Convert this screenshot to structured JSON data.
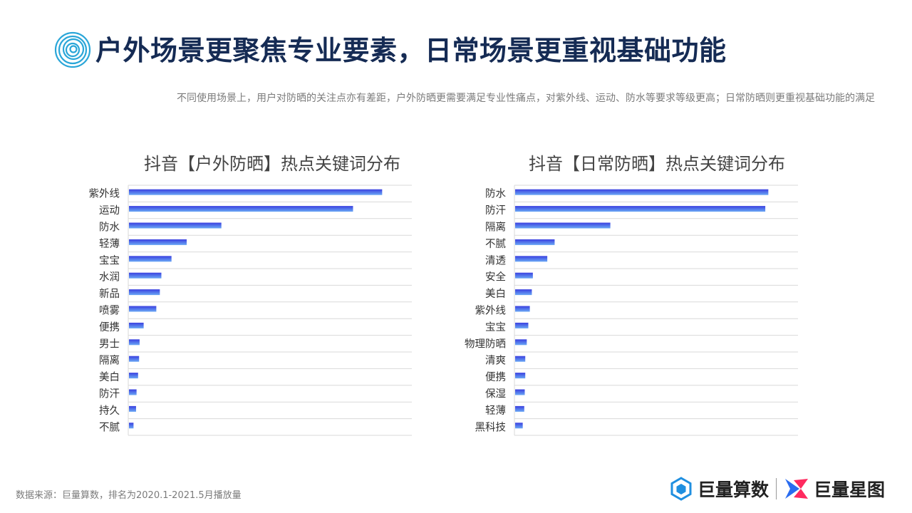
{
  "header": {
    "title": "户外场景更聚焦专业要素，日常场景更重视基础功能",
    "subtitle": "不同使用场景上，用户对防晒的关注点亦有差距，户外防晒更需要满足专业性痛点，对紫外线、运动、防水等要求等级更高；日常防晒则更重视基础功能的满足"
  },
  "colors": {
    "title": "#152b54",
    "bar_start": "#3a3fe0",
    "bar_end": "#6aa8f5",
    "grid": "#d9d9d9",
    "icon": "#2aa6d8"
  },
  "chart_data": [
    {
      "type": "bar",
      "orientation": "horizontal",
      "title": "抖音【户外防晒】热点关键词分布",
      "categories": [
        "紫外线",
        "运动",
        "防水",
        "轻薄",
        "宝宝",
        "水润",
        "新品",
        "喷雾",
        "便携",
        "男士",
        "隔离",
        "美白",
        "防汗",
        "持久",
        "不腻"
      ],
      "values": [
        100,
        88.5,
        36.5,
        22.8,
        16.8,
        12.8,
        12.2,
        10.8,
        5.8,
        4.2,
        4.0,
        3.6,
        3.0,
        2.8,
        1.8
      ],
      "xlim": [
        0,
        112
      ],
      "grid": true
    },
    {
      "type": "bar",
      "orientation": "horizontal",
      "title": "抖音【日常防晒】热点关键词分布",
      "categories": [
        "防水",
        "防汗",
        "隔离",
        "不腻",
        "清透",
        "安全",
        "美白",
        "紫外线",
        "宝宝",
        "物理防晒",
        "清爽",
        "便携",
        "保湿",
        "轻薄",
        "黑科技"
      ],
      "values": [
        100,
        98.8,
        37.6,
        15.6,
        12.7,
        7.0,
        6.6,
        5.8,
        5.2,
        4.6,
        4.0,
        4.0,
        3.8,
        3.6,
        3.0
      ],
      "xlim": [
        0,
        112
      ],
      "grid": true
    }
  ],
  "footer": {
    "source": "数据来源：巨量算数，排名为2020.1-2021.5月播放量",
    "logo1_text": "巨量算数",
    "logo2_text": "巨量星图",
    "logo1_icon": "hexagon-logo-icon",
    "logo2_icon": "star-arrow-logo-icon"
  }
}
